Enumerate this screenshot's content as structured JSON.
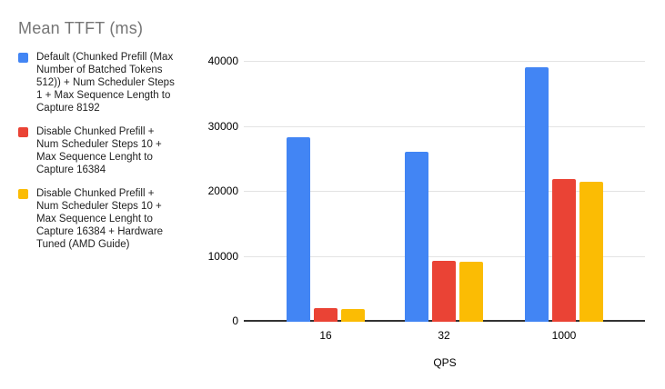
{
  "title": "Mean TTFT (ms)",
  "colors": {
    "series_blue": "#4285F4",
    "series_red": "#EA4335",
    "series_yellow": "#FBBC04",
    "title_text": "#757575",
    "axis_line": "#333333",
    "gridline": "#e3e3e3",
    "label_text": "#000000",
    "background": "#ffffff"
  },
  "legend": {
    "items": [
      {
        "label": "Default (Chunked Prefill (Max\nNumber of Batched Tokens\n512)) + Num Scheduler Steps\n1 + Max Sequence Length to\nCapture 8192",
        "color": "#4285F4"
      },
      {
        "label": "Disable Chunked Prefill +\nNum Scheduler Steps 10 +\nMax Sequence Lenght to\nCapture 16384",
        "color": "#EA4335"
      },
      {
        "label": "Disable Chunked Prefill +\nNum Scheduler Steps 10 +\nMax Sequence Lenght to\nCapture 16384 + Hardware\nTuned (AMD Guide)",
        "color": "#FBBC04"
      }
    ]
  },
  "x_axis": {
    "label": "QPS",
    "categories": [
      "16",
      "32",
      "1000"
    ]
  },
  "y_axis": {
    "ticks": [
      "0",
      "10000",
      "20000",
      "30000",
      "40000"
    ],
    "max": 40000
  },
  "chart_data": {
    "type": "bar",
    "title": "Mean TTFT (ms)",
    "xlabel": "QPS",
    "ylabel": "",
    "categories": [
      "16",
      "32",
      "1000"
    ],
    "series": [
      {
        "name": "Default (Chunked Prefill (Max Number of Batched Tokens 512)) + Num Scheduler Steps 1 + Max Sequence Length to Capture 8192",
        "color": "#4285F4",
        "values": [
          28400,
          26100,
          39100
        ]
      },
      {
        "name": "Disable Chunked Prefill + Num Scheduler Steps 10 + Max Sequence Lenght to Capture 16384",
        "color": "#EA4335",
        "values": [
          2100,
          9400,
          22000
        ]
      },
      {
        "name": "Disable Chunked Prefill + Num Scheduler Steps 10 + Max Sequence Lenght to Capture 16384 + Hardware Tuned (AMD Guide)",
        "color": "#FBBC04",
        "values": [
          2000,
          9200,
          21500
        ]
      }
    ],
    "ylim": [
      0,
      40000
    ],
    "grid": true,
    "legend_position": "left"
  }
}
